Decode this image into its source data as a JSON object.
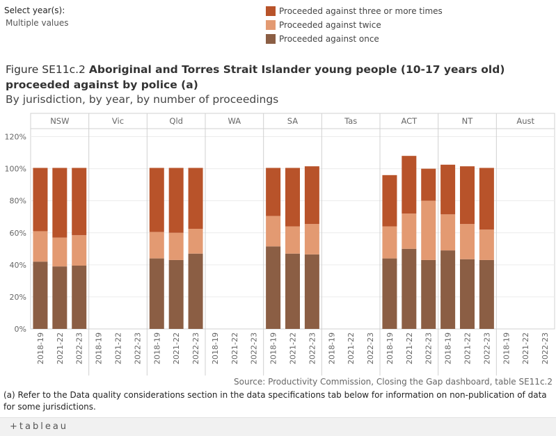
{
  "filter": {
    "label": "Select year(s):",
    "value": "Multiple values"
  },
  "legend": [
    {
      "label": "Proceeded against three or more times",
      "color": "#b8532a"
    },
    {
      "label": "Proceeded against twice",
      "color": "#e39a72"
    },
    {
      "label": "Proceeded against once",
      "color": "#8b5e44"
    }
  ],
  "title": {
    "prefix": "Figure SE11c.2",
    "main": "Aboriginal and Torres Strait Islander young people (10-17 years old) proceeded against by police (a)",
    "subtitle": "By jurisdiction, by year, by number of proceedings"
  },
  "chart_data": {
    "type": "bar",
    "stacked": true,
    "panels": [
      "NSW",
      "Vic",
      "Qld",
      "WA",
      "SA",
      "Tas",
      "ACT",
      "NT",
      "Aust"
    ],
    "years": [
      "2018-19",
      "2021-22",
      "2022-23"
    ],
    "yticks": [
      "0%",
      "20%",
      "40%",
      "60%",
      "80%",
      "100%",
      "120%"
    ],
    "ylim": [
      0,
      1.25
    ],
    "series": [
      {
        "name": "Proceeded against once",
        "values": {
          "NSW": [
            0.42,
            0.39,
            0.395
          ],
          "Qld": [
            0.44,
            0.43,
            0.47
          ],
          "SA": [
            0.515,
            0.47,
            0.465
          ],
          "ACT": [
            0.44,
            0.5,
            0.43
          ],
          "NT": [
            0.49,
            0.435,
            0.43
          ]
        }
      },
      {
        "name": "Proceeded against twice",
        "values": {
          "NSW": [
            0.19,
            0.18,
            0.19
          ],
          "Qld": [
            0.165,
            0.17,
            0.155
          ],
          "SA": [
            0.19,
            0.17,
            0.19
          ],
          "ACT": [
            0.2,
            0.22,
            0.37
          ],
          "NT": [
            0.225,
            0.22,
            0.19
          ]
        }
      },
      {
        "name": "Proceeded against three or more times",
        "values": {
          "NSW": [
            0.395,
            0.435,
            0.42
          ],
          "Qld": [
            0.4,
            0.405,
            0.38
          ],
          "SA": [
            0.3,
            0.365,
            0.36
          ],
          "ACT": [
            0.32,
            0.36,
            0.2
          ],
          "NT": [
            0.31,
            0.36,
            0.385
          ]
        }
      }
    ]
  },
  "source": "Source: Productivity Commission, Closing the Gap dashboard, table SE11c.2",
  "footnote": "(a) Refer to the Data quality considerations section in the data specifications tab below for information on non-publication of data for some jurisdictions.",
  "branding": {
    "logo": "+tableau"
  }
}
